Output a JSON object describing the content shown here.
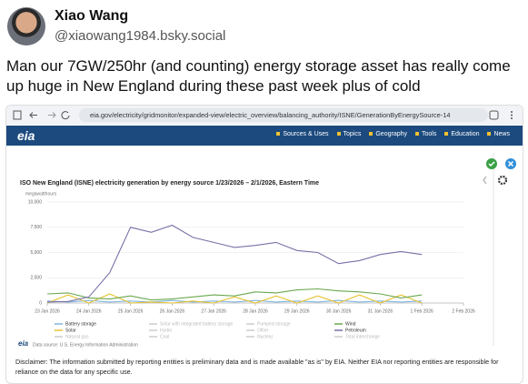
{
  "post": {
    "author": "Xiao Wang",
    "handle": "@xiaowang1984.bsky.social",
    "text": "Man our 7GW/250hr (and counting) energy storage asset has really come up huge in New England during these past week plus of cold"
  },
  "browser": {
    "url": "eia.gov/electricity/gridmonitor/expanded-view/electric_overview/balancing_authority/ISNE/GenerationByEnergySource-14"
  },
  "site": {
    "logo": "eia",
    "nav": [
      "Sources & Uses",
      "Topics",
      "Geography",
      "Tools",
      "Education",
      "News"
    ]
  },
  "chart_data": {
    "type": "line",
    "title": "ISO New England (ISNE) electricity generation by energy source 1/23/2026 – 2/1/2026, Eastern Time",
    "y_label": "megawatthours",
    "x": [
      "2026-01-23T00:00",
      "2026-01-23T12:00",
      "2026-01-24T00:00",
      "2026-01-24T12:00",
      "2026-01-25T00:00",
      "2026-01-25T12:00",
      "2026-01-26T00:00",
      "2026-01-26T12:00",
      "2026-01-27T00:00",
      "2026-01-27T12:00",
      "2026-01-28T00:00",
      "2026-01-28T12:00",
      "2026-01-29T00:00",
      "2026-01-29T12:00",
      "2026-01-30T00:00",
      "2026-01-30T12:00",
      "2026-01-31T00:00",
      "2026-01-31T12:00",
      "2026-02-01T00:00"
    ],
    "series": [
      {
        "name": "Battery storage",
        "color": "#7fb6e0",
        "values": [
          200,
          100,
          250,
          100,
          200,
          100,
          250,
          100,
          200,
          100,
          250,
          100,
          200,
          100,
          250,
          100,
          200,
          100,
          200
        ]
      },
      {
        "name": "Solar",
        "color": "#e6c230",
        "values": [
          0,
          800,
          0,
          900,
          0,
          100,
          0,
          200,
          0,
          600,
          0,
          700,
          0,
          700,
          0,
          800,
          0,
          800,
          0
        ]
      },
      {
        "name": "Wind",
        "color": "#6aa84f",
        "values": [
          900,
          1000,
          500,
          400,
          700,
          300,
          400,
          600,
          800,
          700,
          1100,
          1000,
          1300,
          1400,
          1200,
          1100,
          900,
          500,
          800
        ]
      },
      {
        "name": "Petroleum",
        "color": "#7b6fa8",
        "values": [
          100,
          150,
          600,
          3000,
          7500,
          7000,
          7700,
          6500,
          6000,
          5500,
          5700,
          6000,
          5200,
          5000,
          3900,
          4200,
          4800,
          5100,
          4800
        ]
      }
    ],
    "inactive_series": [
      "Solar with integrated battery storage",
      "Pumped storage",
      "Hydro",
      "Other",
      "Natural gas",
      "Coal",
      "Nuclear",
      "Total interchange"
    ],
    "xlim": [
      "2026-01-23T00:00",
      "2026-02-02T00:00"
    ],
    "xticks": [
      {
        "value": "2026-01-23T00:00",
        "label": "23 Jan 2026"
      },
      {
        "value": "2026-01-24T00:00",
        "label": "24 Jan 2026"
      },
      {
        "value": "2026-01-25T00:00",
        "label": "25 Jan 2026"
      },
      {
        "value": "2026-01-26T00:00",
        "label": "26 Jan 2026"
      },
      {
        "value": "2026-01-27T00:00",
        "label": "27 Jan 2026"
      },
      {
        "value": "2026-01-28T00:00",
        "label": "28 Jan 2026"
      },
      {
        "value": "2026-01-29T00:00",
        "label": "29 Jan 2026"
      },
      {
        "value": "2026-01-30T00:00",
        "label": "30 Jan 2026"
      },
      {
        "value": "2026-01-31T00:00",
        "label": "31 Jan 2026"
      },
      {
        "value": "2026-02-01T00:00",
        "label": "1 Feb 2026"
      },
      {
        "value": "2026-02-02T00:00",
        "label": "2 Feb 2026"
      }
    ],
    "ylim": [
      0,
      10000
    ],
    "yticks": [
      0,
      {
        "value": 2500,
        "label": "2,500"
      },
      {
        "value": 5000,
        "label": "5,000"
      },
      {
        "value": 7500,
        "label": "7,500"
      },
      {
        "value": 10000,
        "label": "10,000"
      }
    ],
    "grid": true
  },
  "footer": {
    "source": "Data source: U.S. Energy Information Administration",
    "disclaimer": "Disclaimer: The information submitted by reporting entities is preliminary data and is made available \"as is\" by EIA. Neither EIA nor reporting entities are responsible for reliance on the data for any specific use."
  }
}
